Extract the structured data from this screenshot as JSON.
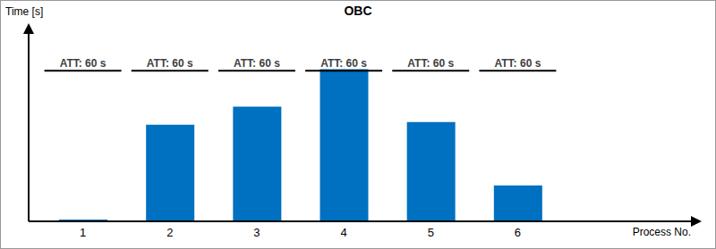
{
  "chart_data": {
    "type": "bar",
    "title": "OBC",
    "x_label": "Process No.",
    "y_label": "Time [s]",
    "categories": [
      "1",
      "2",
      "3",
      "4",
      "5",
      "6"
    ],
    "values": [
      0.7,
      38.5,
      45.7,
      60.7,
      39.6,
      14.3
    ],
    "color": "#0070c0",
    "ylim": [
      0,
      74
    ],
    "tick_labels": "x",
    "annotations": [
      {
        "category": "1",
        "y": 60,
        "text": "ATT: 60 s"
      },
      {
        "category": "2",
        "y": 60,
        "text": "ATT: 60 s"
      },
      {
        "category": "3",
        "y": 60,
        "text": "ATT: 60 s"
      },
      {
        "category": "4",
        "y": 60,
        "text": "ATT: 60 s"
      },
      {
        "category": "5",
        "y": 60,
        "text": "ATT: 60 s"
      },
      {
        "category": "6",
        "y": 60,
        "text": "ATT: 60 s"
      }
    ]
  }
}
